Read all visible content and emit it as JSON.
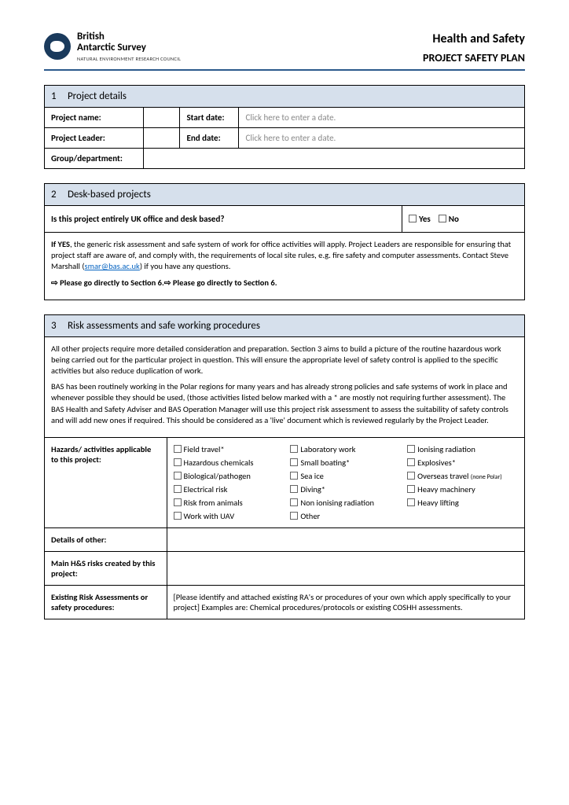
{
  "header": {
    "org_line1": "British",
    "org_line2": "Antarctic Survey",
    "org_sub": "NATURAL ENVIRONMENT RESEARCH COUNCIL",
    "title1": "Health and Safety",
    "title2": "PROJECT SAFETY PLAN"
  },
  "s1": {
    "num": "1",
    "title": "Project details",
    "project_name_label": "Project name:",
    "project_leader_label": "Project Leader:",
    "group_label": "Group/department:",
    "start_date_label": "Start date:",
    "end_date_label": "End date:",
    "date_placeholder": "Click here to enter a date."
  },
  "s2": {
    "num": "2",
    "title": "Desk-based projects",
    "question": "Is this project entirely UK office and desk based?",
    "yes": "Yes",
    "no": "No",
    "para1a": "If YES",
    "para1b": ", the generic risk assessment and safe system of work for office activities will apply. Project Leaders are responsible for ensuring that project staff are aware of, and comply with, the requirements of local site rules, e.g. fire safety and computer assessments. Contact Steve Marshall (",
    "email": "smar@bas.ac.uk",
    "para1c": ") if you have any questions.",
    "goto": "⇨ Please go directly to Section 6.⇨ Please go directly to Section 6."
  },
  "s3": {
    "num": "3",
    "title": "Risk assessments and safe working procedures",
    "intro1": "All other projects require more detailed consideration and preparation. Section 3 aims to build a picture of the routine hazardous work being carried out for the particular project in question. This will ensure the appropriate level of safety control is applied to the specific activities but also reduce duplication of work.",
    "intro2": "BAS has been routinely working in the Polar regions for many years and has already strong policies and safe systems of work in place and whenever possible they should be used, (those activities listed below marked with a * are mostly not requiring further assessment). The BAS Health and Safety Adviser and BAS Operation Manager will use this project risk assessment to assess the suitability of safety controls and will add new ones if required. This should be considered as a 'live' document which is reviewed regularly by the Project Leader.",
    "hazards_label": "Hazards/ activities applicable to this project:",
    "hazards": [
      "Field travel*",
      "Laboratory work",
      "Ionising radiation",
      "Hazardous chemicals",
      "Small boating*",
      "Explosives*",
      "Biological/pathogen",
      "Sea ice",
      "Overseas travel",
      "Electrical risk",
      "Diving*",
      "Heavy machinery",
      "Risk from animals",
      "Non ionising radiation",
      "Heavy lifting",
      "Work with UAV",
      "Other",
      ""
    ],
    "none_polar": "(none Polar)",
    "details_other_label": "Details of other:",
    "main_risks_label": "Main H&S risks created by this project:",
    "existing_label": "Existing Risk Assessments or safety procedures:",
    "existing_text": "[Please identify and attached existing RA's or procedures of your own which apply specifically to your project] Examples are: Chemical procedures/protocols or existing COSHH assessments."
  }
}
